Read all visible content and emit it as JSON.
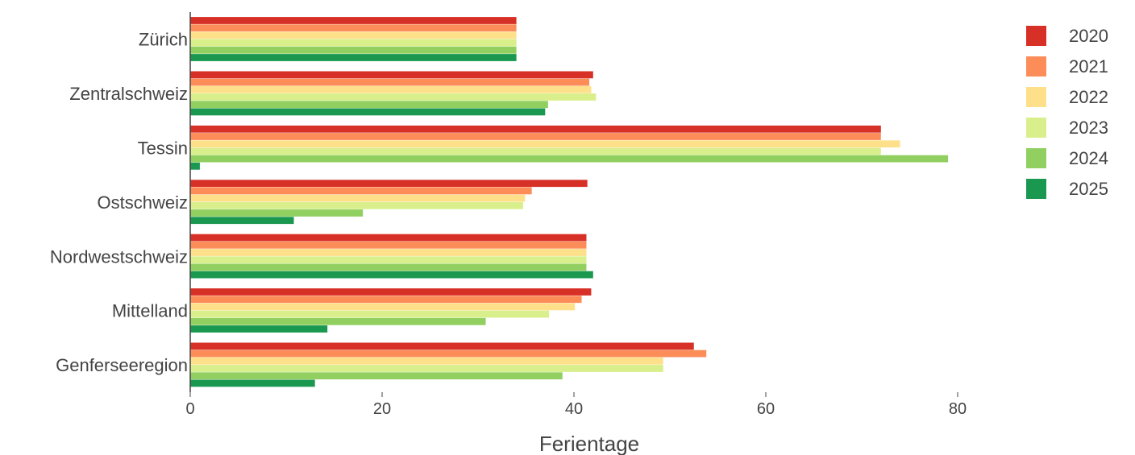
{
  "chart_data": {
    "type": "bar",
    "orientation": "horizontal",
    "categories": [
      "Zürich",
      "Zentralschweiz",
      "Tessin",
      "Ostschweiz",
      "Nordwestschweiz",
      "Mittelland",
      "Genferseeregion"
    ],
    "series": [
      {
        "name": "2025",
        "color": "#1a9850",
        "values": [
          34,
          37,
          1,
          10.8,
          42,
          14.3,
          13
        ]
      },
      {
        "name": "2024",
        "color": "#91cf60",
        "values": [
          34,
          37.3,
          79,
          18,
          41.3,
          30.8,
          38.8
        ]
      },
      {
        "name": "2023",
        "color": "#d9ef8b",
        "values": [
          34,
          42.3,
          72,
          34.7,
          41.3,
          37.4,
          49.3
        ]
      },
      {
        "name": "2022",
        "color": "#fee08b",
        "values": [
          34,
          41.8,
          74,
          34.9,
          41.3,
          40.1,
          49.3
        ]
      },
      {
        "name": "2021",
        "color": "#fc8d59",
        "values": [
          34,
          41.6,
          72,
          35.6,
          41.3,
          40.8,
          53.8
        ]
      },
      {
        "name": "2020",
        "color": "#d73027",
        "values": [
          34,
          42,
          72,
          41.4,
          41.3,
          41.8,
          52.5
        ]
      }
    ],
    "xlabel": "Ferientage",
    "ylabel": "",
    "xlim": [
      0,
      90
    ],
    "xticks": [
      0,
      20,
      40,
      60,
      80
    ],
    "tick_labels": [
      "0",
      "20",
      "40",
      "60",
      "80"
    ],
    "legend_position": "top-right",
    "grid": false
  }
}
